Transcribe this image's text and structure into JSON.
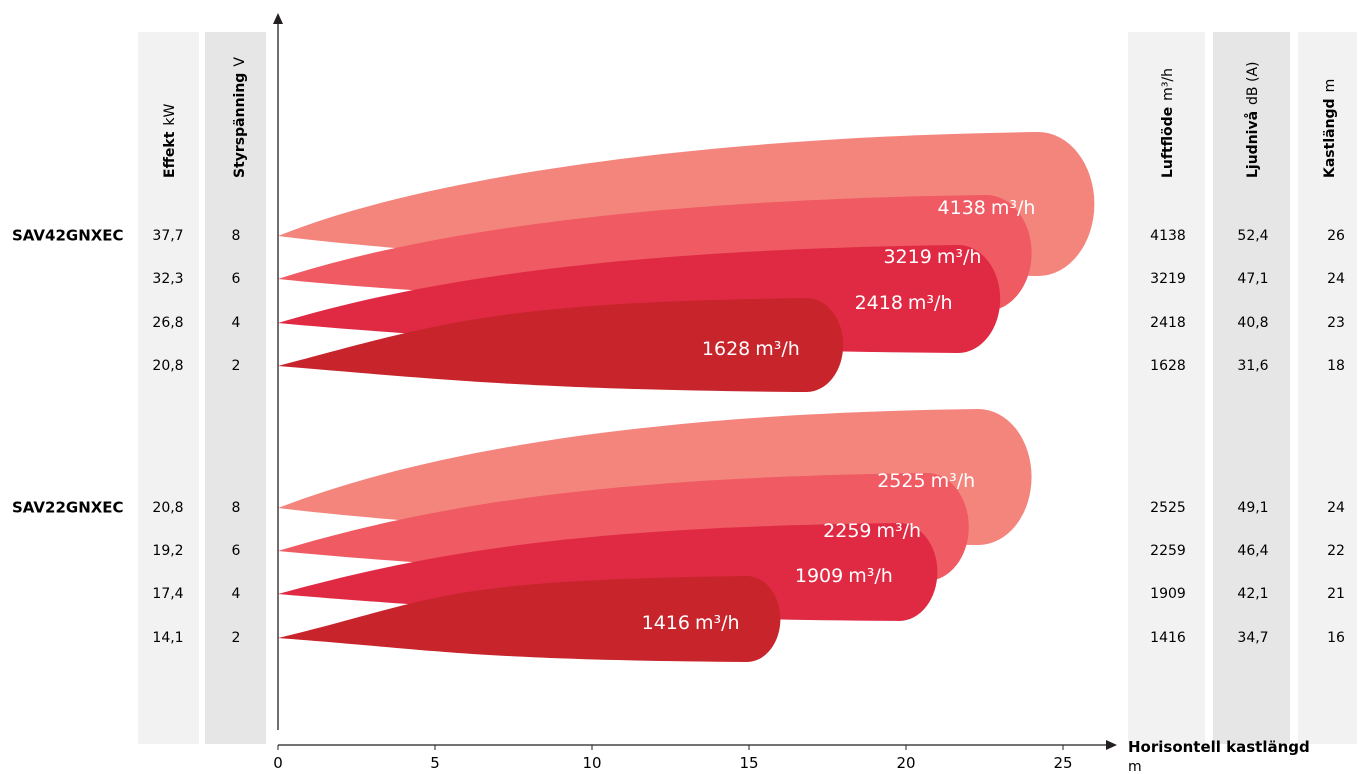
{
  "colors": {
    "level8": "#f4857d",
    "level6": "#ef5a63",
    "level4": "#e02a44",
    "level2": "#c8242b",
    "column_bg": "#f2f2f2",
    "column_bg_dark": "#e6e6e6",
    "axis": "#231f20"
  },
  "headers": {
    "effekt": {
      "name": "Effekt",
      "unit": "kW"
    },
    "styrspanning": {
      "name": "Styrspänning",
      "unit": "V"
    },
    "luftflode": {
      "name": "Luftflöde",
      "unit": "m³/h"
    },
    "ljudniva": {
      "name": "Ljudnivå",
      "unit": "dB (A)"
    },
    "kastlangd": {
      "name": "Kastlängd",
      "unit": "m"
    }
  },
  "bubble_unit": "m³/h",
  "chart_data": {
    "type": "area",
    "xlabel": "Horisontell kastlängd",
    "xunit": "m",
    "xlim": [
      0,
      27
    ],
    "xticks": [
      0,
      5,
      10,
      15,
      20,
      25
    ],
    "groups": [
      {
        "model": "SAV42GNXEC",
        "rows": [
          {
            "effekt": "37,7",
            "voltage": "8",
            "airflow": "4138",
            "sound": "52,4",
            "throw": "26",
            "reach": 26,
            "label": "4138"
          },
          {
            "effekt": "32,3",
            "voltage": "6",
            "airflow": "3219",
            "sound": "47,1",
            "throw": "24",
            "reach": 24,
            "label": "3219"
          },
          {
            "effekt": "26,8",
            "voltage": "4",
            "airflow": "2418",
            "sound": "40,8",
            "throw": "23",
            "reach": 23,
            "label": "2418"
          },
          {
            "effekt": "20,8",
            "voltage": "2",
            "airflow": "1628",
            "sound": "31,6",
            "throw": "18",
            "reach": 18,
            "label": "1628"
          }
        ]
      },
      {
        "model": "SAV22GNXEC",
        "rows": [
          {
            "effekt": "20,8",
            "voltage": "8",
            "airflow": "2525",
            "sound": "49,1",
            "throw": "24",
            "reach": 24,
            "label": "2525"
          },
          {
            "effekt": "19,2",
            "voltage": "6",
            "airflow": "2259",
            "sound": "46,4",
            "throw": "22",
            "reach": 22,
            "label": "2259"
          },
          {
            "effekt": "17,4",
            "voltage": "4",
            "airflow": "1909",
            "sound": "42,1",
            "throw": "21",
            "reach": 21,
            "label": "1909"
          },
          {
            "effekt": "14,1",
            "voltage": "2",
            "airflow": "1416",
            "sound": "34,7",
            "throw": "16",
            "reach": 16,
            "label": "1416"
          }
        ]
      }
    ]
  }
}
